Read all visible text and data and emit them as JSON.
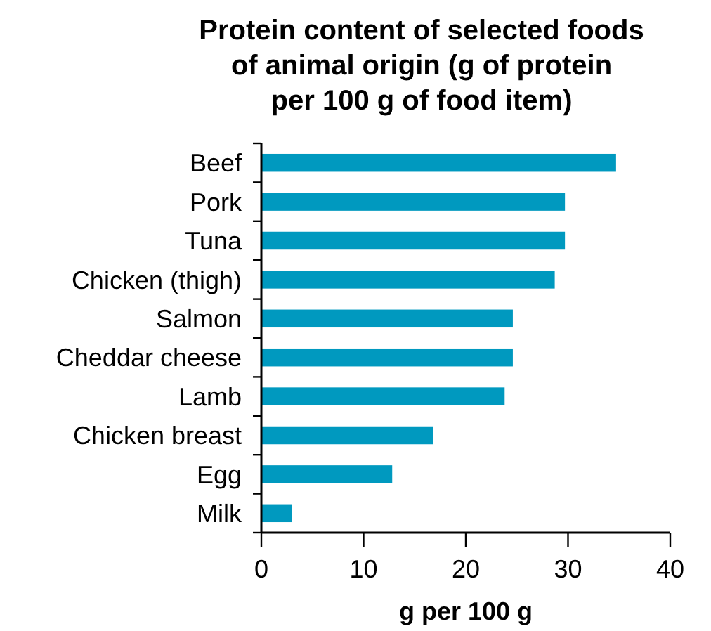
{
  "chart_data": {
    "type": "bar",
    "orientation": "horizontal",
    "title": "Protein content of selected foods of animal origin (g of protein per 100 g of food item)",
    "xlabel": "g per 100 g",
    "categories": [
      "Beef",
      "Pork",
      "Tuna",
      "Chicken (thigh)",
      "Salmon",
      "Cheddar cheese",
      "Lamb",
      "Chicken breast",
      "Egg",
      "Milk"
    ],
    "values": [
      34.7,
      29.7,
      29.7,
      28.7,
      24.6,
      24.6,
      23.8,
      16.8,
      12.8,
      3.0
    ],
    "color": "#0099bf",
    "xlim": [
      0,
      40
    ],
    "xticks": [
      0,
      10,
      20,
      30,
      40
    ],
    "grid": false
  }
}
